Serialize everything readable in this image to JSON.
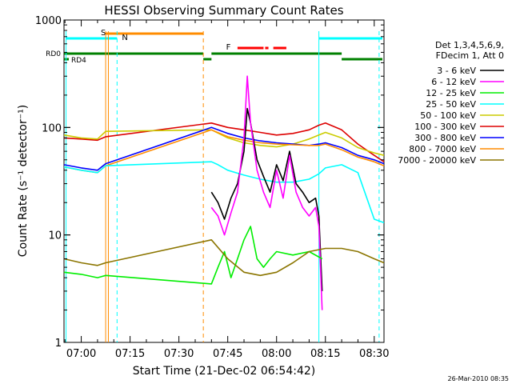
{
  "chart_data": {
    "type": "line",
    "title": "HESSI Observing Summary Count Rates",
    "xlabel": "Start Time (21-Dec-02 06:54:42)",
    "ylabel": "Count Rate (s⁻¹ detector⁻¹)",
    "xlim": [
      "06:54:42",
      "08:33:00"
    ],
    "ylim": [
      1,
      1000
    ],
    "yscale": "log",
    "x_ticks": [
      "07:00",
      "07:15",
      "07:30",
      "07:45",
      "08:00",
      "08:15",
      "08:30"
    ],
    "y_ticks": [
      "1",
      "10",
      "100",
      "1000"
    ],
    "legend": {
      "position": "right",
      "header": [
        "Det 1,3,4,5,6,9,",
        "FDecim 1, Att 0"
      ],
      "items": [
        {
          "label": "3 - 6 keV",
          "color": "#000000"
        },
        {
          "label": "6 - 12 keV",
          "color": "#ff00ff"
        },
        {
          "label": "12 - 25 keV",
          "color": "#00ee00"
        },
        {
          "label": "25 - 50 keV",
          "color": "#00ffff"
        },
        {
          "label": "50 - 100 keV",
          "color": "#cccc00"
        },
        {
          "label": "100 - 300 keV",
          "color": "#dd0000"
        },
        {
          "label": "300 - 800 keV",
          "color": "#0000ff"
        },
        {
          "label": "800 - 7000 keV",
          "color": "#ff8c00"
        },
        {
          "label": "7000 - 20000 keV",
          "color": "#8b7500"
        }
      ]
    },
    "flags": [
      {
        "label": "S",
        "color": "#ff8c00"
      },
      {
        "label": "N",
        "color": "#00ffff"
      },
      {
        "label": "F",
        "color": "#ff0000"
      },
      {
        "label": "RD0",
        "color": "#008000"
      },
      {
        "label": "RD4",
        "color": "#008000"
      }
    ],
    "timestamp": "26-Mar-2010 08:35",
    "series": [
      {
        "color": "#dd0000",
        "x": [
          "06:54:42",
          "07:00",
          "07:05",
          "07:07:30",
          "07:40",
          "07:45",
          "07:50",
          "07:55",
          "08:00",
          "08:05",
          "08:10",
          "08:13",
          "08:15",
          "08:20",
          "08:25",
          "08:30",
          "08:33"
        ],
        "y": [
          80,
          78,
          76,
          82,
          110,
          100,
          95,
          90,
          85,
          88,
          95,
          105,
          110,
          95,
          70,
          55,
          48
        ]
      },
      {
        "color": "#cccc00",
        "x": [
          "06:54:42",
          "07:00",
          "07:05",
          "07:07:30",
          "07:40",
          "07:45",
          "07:50",
          "07:55",
          "08:00",
          "08:05",
          "08:10",
          "08:13",
          "08:15",
          "08:20",
          "08:25",
          "08:30",
          "08:33"
        ],
        "y": [
          85,
          80,
          78,
          92,
          95,
          80,
          72,
          68,
          66,
          70,
          78,
          85,
          90,
          80,
          65,
          58,
          55
        ]
      },
      {
        "color": "#0000ff",
        "x": [
          "06:54:42",
          "07:00",
          "07:05",
          "07:07:30",
          "07:40",
          "07:45",
          "07:50",
          "07:55",
          "08:00",
          "08:05",
          "08:10",
          "08:13",
          "08:15",
          "08:20",
          "08:25",
          "08:30",
          "08:33"
        ],
        "y": [
          45,
          42,
          40,
          46,
          100,
          88,
          80,
          75,
          72,
          70,
          68,
          70,
          72,
          65,
          55,
          50,
          46
        ]
      },
      {
        "color": "#ff8c00",
        "x": [
          "06:54:42",
          "07:00",
          "07:05",
          "07:07:30",
          "07:40",
          "07:45",
          "07:50",
          "07:55",
          "08:00",
          "08:05",
          "08:10",
          "08:13",
          "08:15",
          "08:20",
          "08:25",
          "08:30",
          "08:33"
        ],
        "y": [
          43,
          40,
          38,
          44,
          95,
          82,
          76,
          72,
          70,
          69,
          68,
          68,
          70,
          62,
          53,
          48,
          44
        ]
      },
      {
        "color": "#00ffff",
        "x": [
          "06:54:42",
          "07:00",
          "07:05",
          "07:07:30",
          "07:40",
          "07:42",
          "07:45",
          "07:50",
          "07:55",
          "08:00",
          "08:05",
          "08:10",
          "08:13",
          "08:15",
          "08:20",
          "08:25",
          "08:30",
          "08:33"
        ],
        "y": [
          43,
          40,
          38,
          44,
          48,
          45,
          40,
          36,
          33,
          31,
          31,
          33,
          37,
          42,
          45,
          38,
          14,
          13
        ]
      },
      {
        "color": "#000000",
        "x": [
          "07:40",
          "07:42",
          "07:44",
          "07:46",
          "07:48",
          "07:50",
          "07:51",
          "07:52",
          "07:54",
          "07:56",
          "07:58",
          "08:00",
          "08:02",
          "08:04",
          "08:06",
          "08:08",
          "08:10",
          "08:12",
          "08:13",
          "08:14"
        ],
        "y": [
          25,
          20,
          14,
          22,
          30,
          60,
          150,
          110,
          50,
          35,
          25,
          45,
          32,
          60,
          30,
          25,
          20,
          22,
          15,
          3
        ]
      },
      {
        "color": "#ff00ff",
        "x": [
          "07:40",
          "07:42",
          "07:44",
          "07:46",
          "07:48",
          "07:50",
          "07:51",
          "07:52",
          "07:54",
          "07:56",
          "07:58",
          "08:00",
          "08:02",
          "08:04",
          "08:06",
          "08:08",
          "08:10",
          "08:12",
          "08:13",
          "08:14"
        ],
        "y": [
          18,
          15,
          10,
          16,
          25,
          80,
          300,
          110,
          40,
          25,
          18,
          40,
          22,
          55,
          25,
          18,
          15,
          18,
          12,
          2
        ]
      },
      {
        "color": "#00ee00",
        "x": [
          "06:54:42",
          "07:00",
          "07:05",
          "07:07:30",
          "07:40",
          "07:42",
          "07:44",
          "07:46",
          "07:48",
          "07:50",
          "07:52",
          "07:54",
          "07:56",
          "07:58",
          "08:00",
          "08:05",
          "08:10",
          "08:14"
        ],
        "y": [
          4.5,
          4.3,
          4.0,
          4.2,
          3.5,
          5,
          7,
          4,
          6,
          9,
          12,
          6,
          5,
          6,
          7,
          6.5,
          7,
          6
        ]
      },
      {
        "color": "#8b7500",
        "x": [
          "06:54:42",
          "07:00",
          "07:05",
          "07:07:30",
          "07:40",
          "07:45",
          "07:50",
          "07:55",
          "08:00",
          "08:05",
          "08:10",
          "08:15",
          "08:20",
          "08:25",
          "08:30",
          "08:33"
        ],
        "y": [
          6.0,
          5.5,
          5.2,
          5.5,
          9,
          6,
          4.5,
          4.2,
          4.5,
          5.5,
          7,
          7.5,
          7.5,
          7.0,
          6.0,
          5.5
        ]
      }
    ]
  }
}
